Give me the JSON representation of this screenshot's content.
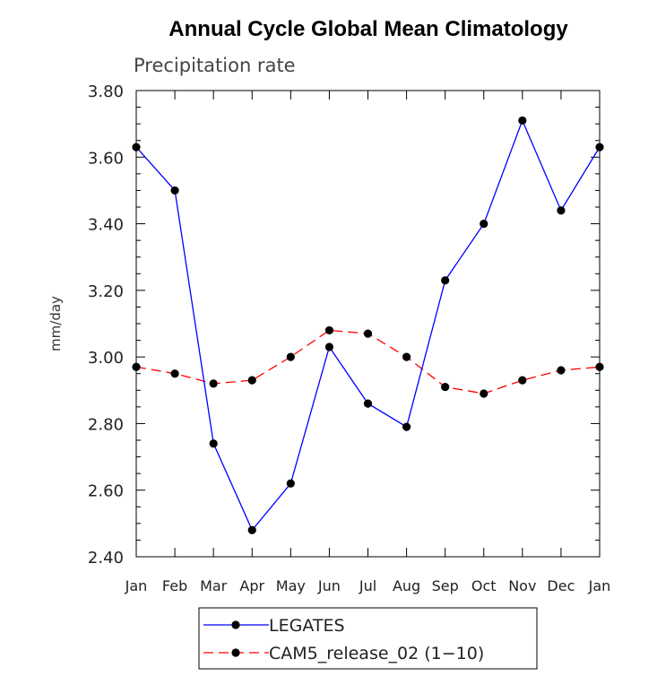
{
  "chart_data": {
    "type": "line",
    "title": "Annual Cycle Global Mean Climatology",
    "subtitle": "Precipitation rate",
    "ylabel": "mm/day",
    "xlabel": "",
    "categories": [
      "Jan",
      "Feb",
      "Mar",
      "Apr",
      "May",
      "Jun",
      "Jul",
      "Aug",
      "Sep",
      "Oct",
      "Nov",
      "Dec",
      "Jan"
    ],
    "ylim": [
      2.4,
      3.8
    ],
    "yticks": [
      "2.40",
      "2.60",
      "2.80",
      "3.00",
      "3.20",
      "3.40",
      "3.60",
      "3.80"
    ],
    "grid": false,
    "legend_position": "bottom",
    "series": [
      {
        "name": "LEGATES",
        "color": "#0000ff",
        "dash": "solid",
        "values": [
          3.63,
          3.5,
          2.74,
          2.48,
          2.62,
          3.03,
          2.86,
          2.79,
          3.23,
          3.4,
          3.71,
          3.44,
          3.63
        ]
      },
      {
        "name": "CAM5_release_02 (1−10)",
        "color": "#ff0000",
        "dash": "dashed",
        "values": [
          2.97,
          2.95,
          2.92,
          2.93,
          3.0,
          3.08,
          3.07,
          3.0,
          2.91,
          2.89,
          2.93,
          2.96,
          2.97
        ]
      }
    ]
  }
}
